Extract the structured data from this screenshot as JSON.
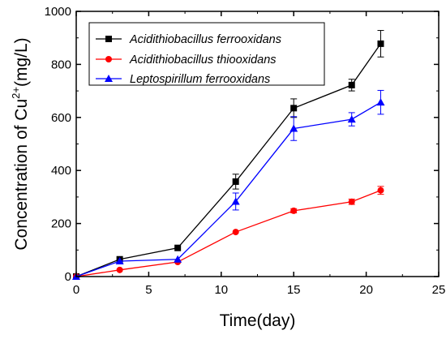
{
  "chart_data": {
    "type": "line",
    "title": "",
    "xlabel": "Time(day)",
    "ylabel": {
      "base": "Concentration of Cu",
      "superscript": "2+",
      "unit": "(mg/L)"
    },
    "xlim": [
      0,
      25
    ],
    "ylim": [
      0,
      1000
    ],
    "xticks": [
      0,
      5,
      10,
      15,
      20,
      25
    ],
    "yticks": [
      0,
      200,
      400,
      600,
      800,
      1000
    ],
    "grid": false,
    "legend_position": "top-left",
    "series": [
      {
        "name": "Acidithiobacillus ferrooxidans",
        "color": "#000000",
        "marker": "square",
        "x": [
          0,
          3,
          7,
          11,
          15,
          19,
          21
        ],
        "y": [
          0,
          65,
          108,
          358,
          635,
          722,
          878
        ],
        "err": [
          0,
          0,
          0,
          28,
          35,
          22,
          50
        ]
      },
      {
        "name": "Acidithiobacillus thiooxidans",
        "color": "#ff0000",
        "marker": "circle",
        "x": [
          0,
          3,
          7,
          11,
          15,
          19,
          21
        ],
        "y": [
          0,
          25,
          55,
          168,
          248,
          282,
          325
        ],
        "err": [
          0,
          0,
          0,
          0,
          8,
          10,
          15
        ]
      },
      {
        "name": "Leptospirillum ferrooxidans",
        "color": "#0000ff",
        "marker": "triangle",
        "x": [
          0,
          3,
          7,
          11,
          15,
          19,
          21
        ],
        "y": [
          0,
          58,
          65,
          283,
          558,
          593,
          657
        ],
        "err": [
          0,
          0,
          0,
          32,
          45,
          25,
          45
        ]
      }
    ]
  }
}
